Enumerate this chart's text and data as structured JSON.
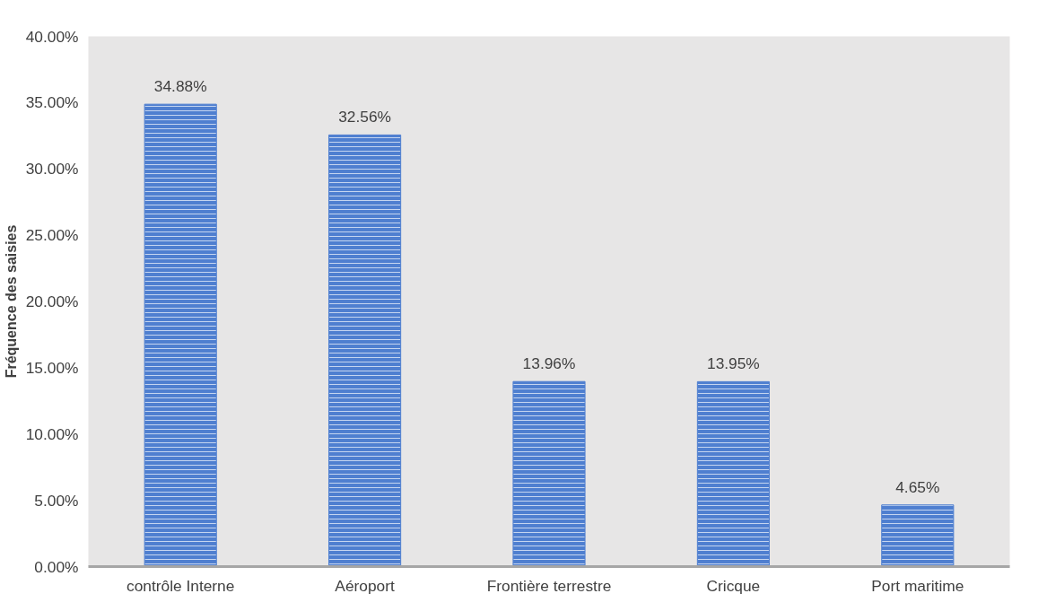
{
  "chart_data": {
    "type": "bar",
    "ylabel": "Fréquence des saisies",
    "categories": [
      "contrôle Interne",
      "Aéroport",
      "Frontière terrestre",
      "Cricque",
      "Port maritime"
    ],
    "values": [
      34.88,
      32.56,
      13.96,
      13.95,
      4.65
    ],
    "value_labels": [
      "34.88%",
      "32.56%",
      "13.96%",
      "13.95%",
      "4.65%"
    ],
    "color": "#4f7fd0",
    "ylim": [
      0,
      40
    ],
    "yticks": [
      {
        "value": 0,
        "label": "0.00%"
      },
      {
        "value": 5,
        "label": "5.00%"
      },
      {
        "value": 10,
        "label": "10.00%"
      },
      {
        "value": 15,
        "label": "15.00%"
      },
      {
        "value": 20,
        "label": "20.00%"
      },
      {
        "value": 25,
        "label": "25.00%"
      },
      {
        "value": 30,
        "label": "30.00%"
      },
      {
        "value": 35,
        "label": "35.00%"
      },
      {
        "value": 40,
        "label": "40.00%"
      }
    ],
    "grid": false
  }
}
